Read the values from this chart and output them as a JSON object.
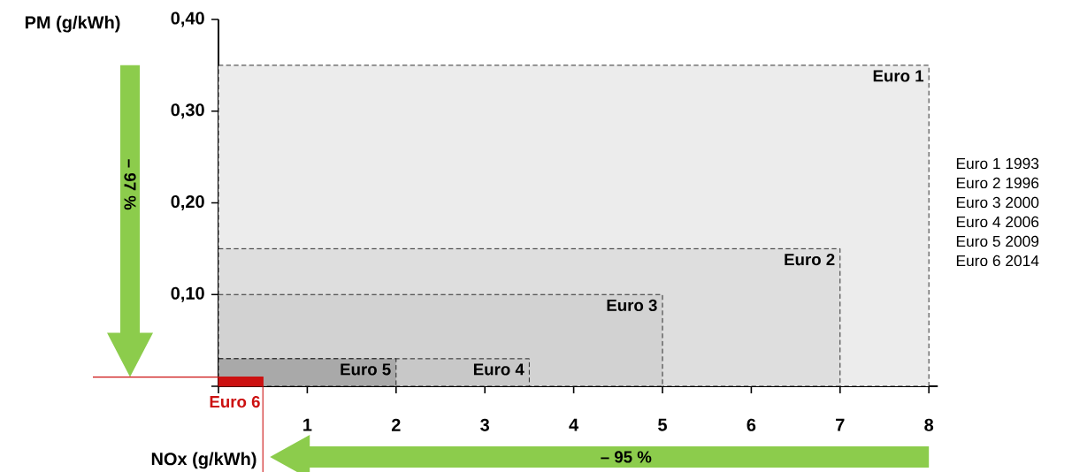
{
  "chart_data": {
    "type": "area",
    "xlabel": "NOx (g/kWh)",
    "ylabel": "PM (g/kWh)",
    "xlim": [
      0,
      8.1
    ],
    "ylim": [
      0,
      0.4
    ],
    "xticks": [
      {
        "value": 0,
        "label": null
      },
      1,
      2,
      3,
      4,
      5,
      6,
      7,
      8
    ],
    "yticks": [
      {
        "value": 0,
        "label": null
      },
      {
        "value": 0.1,
        "label": "0,10"
      },
      {
        "value": 0.2,
        "label": "0,20"
      },
      {
        "value": 0.3,
        "label": "0,30"
      },
      {
        "value": 0.4,
        "label": "0,40"
      }
    ],
    "line_style": "dashed",
    "series": [
      {
        "name": "Euro 1",
        "color": "#ececec",
        "x": [
          0,
          8
        ],
        "values": [
          0.35,
          0.35
        ]
      },
      {
        "name": "Euro 2",
        "color": "#dedede",
        "x": [
          0,
          7
        ],
        "values": [
          0.15,
          0.15
        ]
      },
      {
        "name": "Euro 3",
        "color": "#d2d2d2",
        "x": [
          0,
          5
        ],
        "values": [
          0.1,
          0.1
        ]
      },
      {
        "name": "Euro 4",
        "color": "#c8c8c8",
        "x": [
          0,
          3.5
        ],
        "values": [
          0.03,
          0.03
        ]
      },
      {
        "name": "Euro 5",
        "color": "#a9a9a9",
        "x": [
          0,
          2
        ],
        "values": [
          0.03,
          0.03
        ]
      },
      {
        "name": "Euro 6",
        "color": "#cc1111",
        "x": [
          0,
          0.5
        ],
        "values": [
          0.01,
          0.01
        ],
        "line_style": "solid"
      }
    ],
    "annotations": [
      "– 97 %",
      "– 95 %",
      "Euro 1  1993",
      "Euro 2  1996",
      "Euro 3  2000",
      "Euro 4  2006",
      "Euro 5  2009",
      "Euro 6  2014"
    ]
  }
}
